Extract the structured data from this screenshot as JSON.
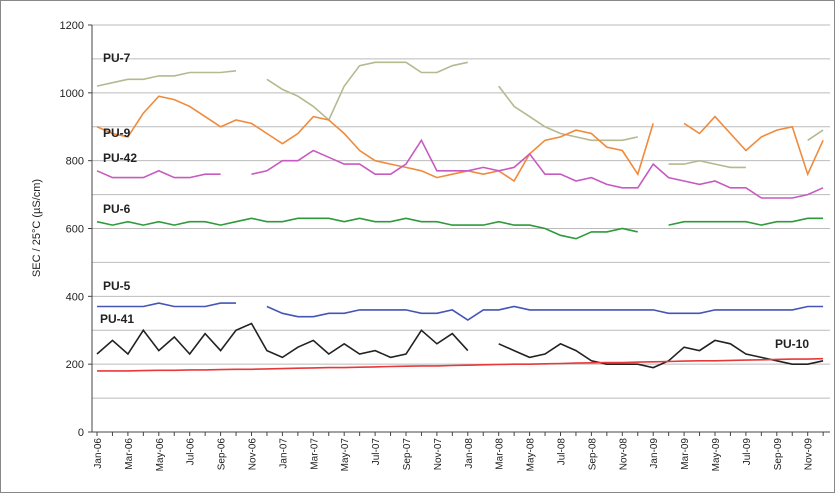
{
  "chart_data": {
    "type": "line",
    "y_label": "SEC / 25°C (µS/cm)",
    "categories": [
      "Jan-06",
      null,
      "Mar-06",
      null,
      "May-06",
      null,
      "Jul-06",
      null,
      "Sep-06",
      null,
      "Nov-06",
      null,
      "Jan-07",
      null,
      "Mar-07",
      null,
      "May-07",
      null,
      "Jul-07",
      null,
      "Sep-07",
      null,
      "Nov-07",
      null,
      "Jan-08",
      null,
      "Mar-08",
      null,
      "May-08",
      null,
      "Jul-08",
      null,
      "Sep-08",
      null,
      "Nov-08",
      null,
      "Jan-09",
      null,
      "Mar-09",
      null,
      "May-09",
      null,
      "Jul-09",
      null,
      "Sep-09",
      null,
      "Nov-09",
      null
    ],
    "ylim": [
      0,
      1200
    ],
    "yticks": [
      0,
      200,
      400,
      600,
      800,
      1000,
      1200
    ],
    "ygrid": [
      100,
      300,
      500,
      700,
      900,
      1100
    ],
    "grid": true,
    "series": [
      {
        "name": "PU-7",
        "color": "#b5b98f",
        "values": [
          1020,
          1030,
          1040,
          1040,
          1050,
          1050,
          1060,
          1060,
          1060,
          1065,
          null,
          1040,
          1010,
          990,
          960,
          920,
          1020,
          1080,
          1090,
          1090,
          1090,
          1060,
          1060,
          1080,
          1090,
          null,
          1020,
          960,
          930,
          900,
          880,
          870,
          860,
          860,
          860,
          870,
          null,
          790,
          790,
          800,
          790,
          780,
          780,
          null,
          null,
          null,
          860,
          890
        ]
      },
      {
        "name": "PU-9",
        "color": "#f08a3c",
        "values": [
          900,
          880,
          870,
          940,
          990,
          980,
          960,
          930,
          900,
          920,
          910,
          880,
          850,
          880,
          930,
          920,
          880,
          830,
          800,
          790,
          780,
          770,
          750,
          760,
          770,
          760,
          770,
          740,
          820,
          860,
          870,
          890,
          880,
          840,
          830,
          760,
          910,
          null,
          910,
          880,
          930,
          880,
          830,
          870,
          890,
          900,
          760,
          860
        ]
      },
      {
        "name": "PU-42",
        "color": "#c75ac0",
        "values": [
          770,
          750,
          750,
          750,
          770,
          750,
          750,
          760,
          760,
          null,
          760,
          770,
          800,
          800,
          830,
          810,
          790,
          790,
          760,
          760,
          790,
          860,
          770,
          770,
          770,
          780,
          770,
          780,
          820,
          760,
          760,
          740,
          750,
          730,
          720,
          720,
          790,
          750,
          740,
          730,
          740,
          720,
          720,
          690,
          690,
          690,
          700,
          720
        ]
      },
      {
        "name": "PU-6",
        "color": "#2e9a3a",
        "values": [
          620,
          610,
          620,
          610,
          620,
          610,
          620,
          620,
          610,
          620,
          630,
          620,
          620,
          630,
          630,
          630,
          620,
          630,
          620,
          620,
          630,
          620,
          620,
          610,
          610,
          610,
          620,
          610,
          610,
          600,
          580,
          570,
          590,
          590,
          600,
          590,
          null,
          610,
          620,
          620,
          620,
          620,
          620,
          610,
          620,
          620,
          630,
          630
        ]
      },
      {
        "name": "PU-5",
        "color": "#4455b5",
        "values": [
          370,
          370,
          370,
          370,
          380,
          370,
          370,
          370,
          380,
          380,
          null,
          370,
          350,
          340,
          340,
          350,
          350,
          360,
          360,
          360,
          360,
          350,
          350,
          360,
          330,
          360,
          360,
          370,
          360,
          360,
          360,
          360,
          360,
          360,
          360,
          360,
          360,
          350,
          350,
          350,
          360,
          360,
          360,
          360,
          360,
          360,
          370,
          370
        ]
      },
      {
        "name": "PU-41",
        "color": "#222222",
        "values": [
          230,
          270,
          230,
          300,
          240,
          280,
          230,
          290,
          240,
          300,
          320,
          240,
          220,
          250,
          270,
          230,
          260,
          230,
          240,
          220,
          230,
          300,
          260,
          290,
          240,
          null,
          260,
          240,
          220,
          230,
          260,
          240,
          210,
          200,
          200,
          200,
          190,
          210,
          250,
          240,
          270,
          260,
          230,
          220,
          210,
          200,
          200,
          210
        ]
      },
      {
        "name": "PU-10",
        "color": "#e8393a",
        "values": [
          180,
          180,
          180,
          181,
          182,
          182,
          183,
          183,
          184,
          185,
          185,
          186,
          187,
          188,
          189,
          190,
          190,
          191,
          192,
          193,
          194,
          195,
          195,
          196,
          197,
          198,
          199,
          200,
          200,
          201,
          202,
          203,
          204,
          205,
          205,
          206,
          207,
          208,
          209,
          210,
          210,
          211,
          212,
          213,
          214,
          215,
          215,
          216
        ]
      }
    ]
  }
}
